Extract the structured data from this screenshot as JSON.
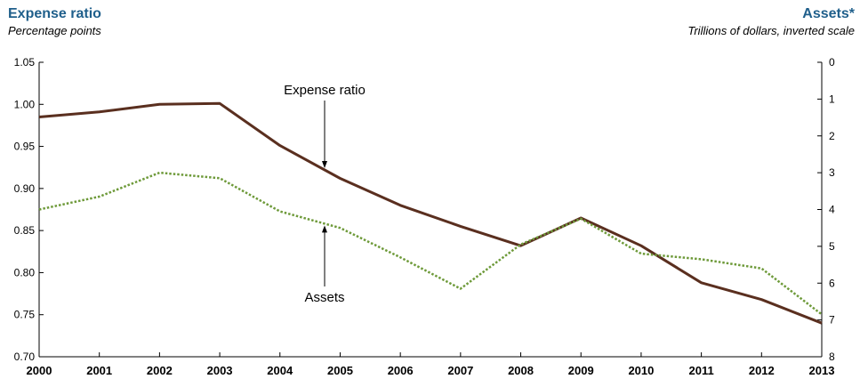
{
  "chart_data": {
    "type": "line",
    "title_left": "Expense ratio",
    "subtitle_left": "Percentage points",
    "title_right": "Assets*",
    "subtitle_right": "Trillions of dollars, inverted scale",
    "title_color": "#1f5f8b",
    "x": [
      "2000",
      "2001",
      "2002",
      "2003",
      "2004",
      "2005",
      "2006",
      "2007",
      "2008",
      "2009",
      "2010",
      "2011",
      "2012",
      "2013"
    ],
    "y_left": {
      "ylim": [
        0.7,
        1.05
      ],
      "ticks": [
        "1.05",
        "1.00",
        "0.95",
        "0.90",
        "0.85",
        "0.80",
        "0.75",
        "0.70"
      ]
    },
    "y_right": {
      "ylim": [
        0,
        8
      ],
      "inverted": true,
      "ticks": [
        "0",
        "1",
        "2",
        "3",
        "4",
        "5",
        "6",
        "7",
        "8"
      ]
    },
    "series": [
      {
        "name": "Expense ratio",
        "axis": "left",
        "color": "#5a2f1f",
        "style": "solid",
        "values": [
          0.985,
          0.991,
          1.0,
          1.001,
          0.951,
          0.912,
          0.88,
          0.855,
          0.832,
          0.865,
          0.832,
          0.788,
          0.768,
          0.74
        ]
      },
      {
        "name": "Assets",
        "axis": "right",
        "color": "#6e9a3a",
        "style": "dotted",
        "values": [
          4.0,
          3.65,
          3.0,
          3.15,
          4.05,
          4.5,
          5.3,
          6.15,
          4.95,
          4.25,
          5.2,
          5.35,
          5.6,
          6.85
        ]
      }
    ],
    "annotations": [
      {
        "label": "Expense ratio",
        "series": "Expense ratio"
      },
      {
        "label": "Assets",
        "series": "Assets"
      }
    ],
    "grid": false,
    "legend": "none"
  }
}
